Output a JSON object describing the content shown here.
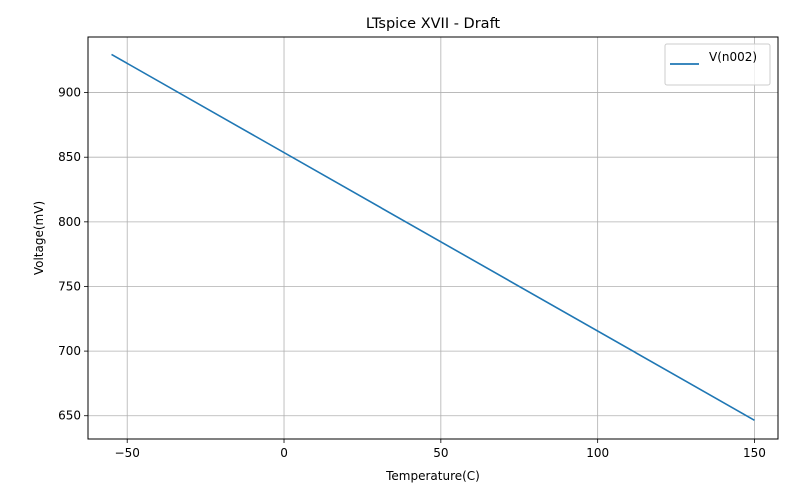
{
  "chart_data": {
    "type": "line",
    "title": "LTspice XVII - Draft",
    "xlabel": "Temperature(C)",
    "ylabel": "Voltage(mV)",
    "xlim": [
      -62.5,
      157.5
    ],
    "ylim": [
      632,
      943
    ],
    "xticks": [
      -50,
      0,
      50,
      100,
      150
    ],
    "yticks": [
      650,
      700,
      750,
      800,
      850,
      900
    ],
    "xtick_labels": [
      "−50",
      "0",
      "50",
      "100",
      "150"
    ],
    "ytick_labels": [
      "650",
      "700",
      "750",
      "800",
      "850",
      "900"
    ],
    "grid": true,
    "legend_position": "top-right",
    "series": [
      {
        "name": "V(n002)",
        "color": "#1f77b4",
        "x": [
          -55,
          150
        ],
        "y": [
          929.5,
          646.5
        ]
      }
    ]
  }
}
